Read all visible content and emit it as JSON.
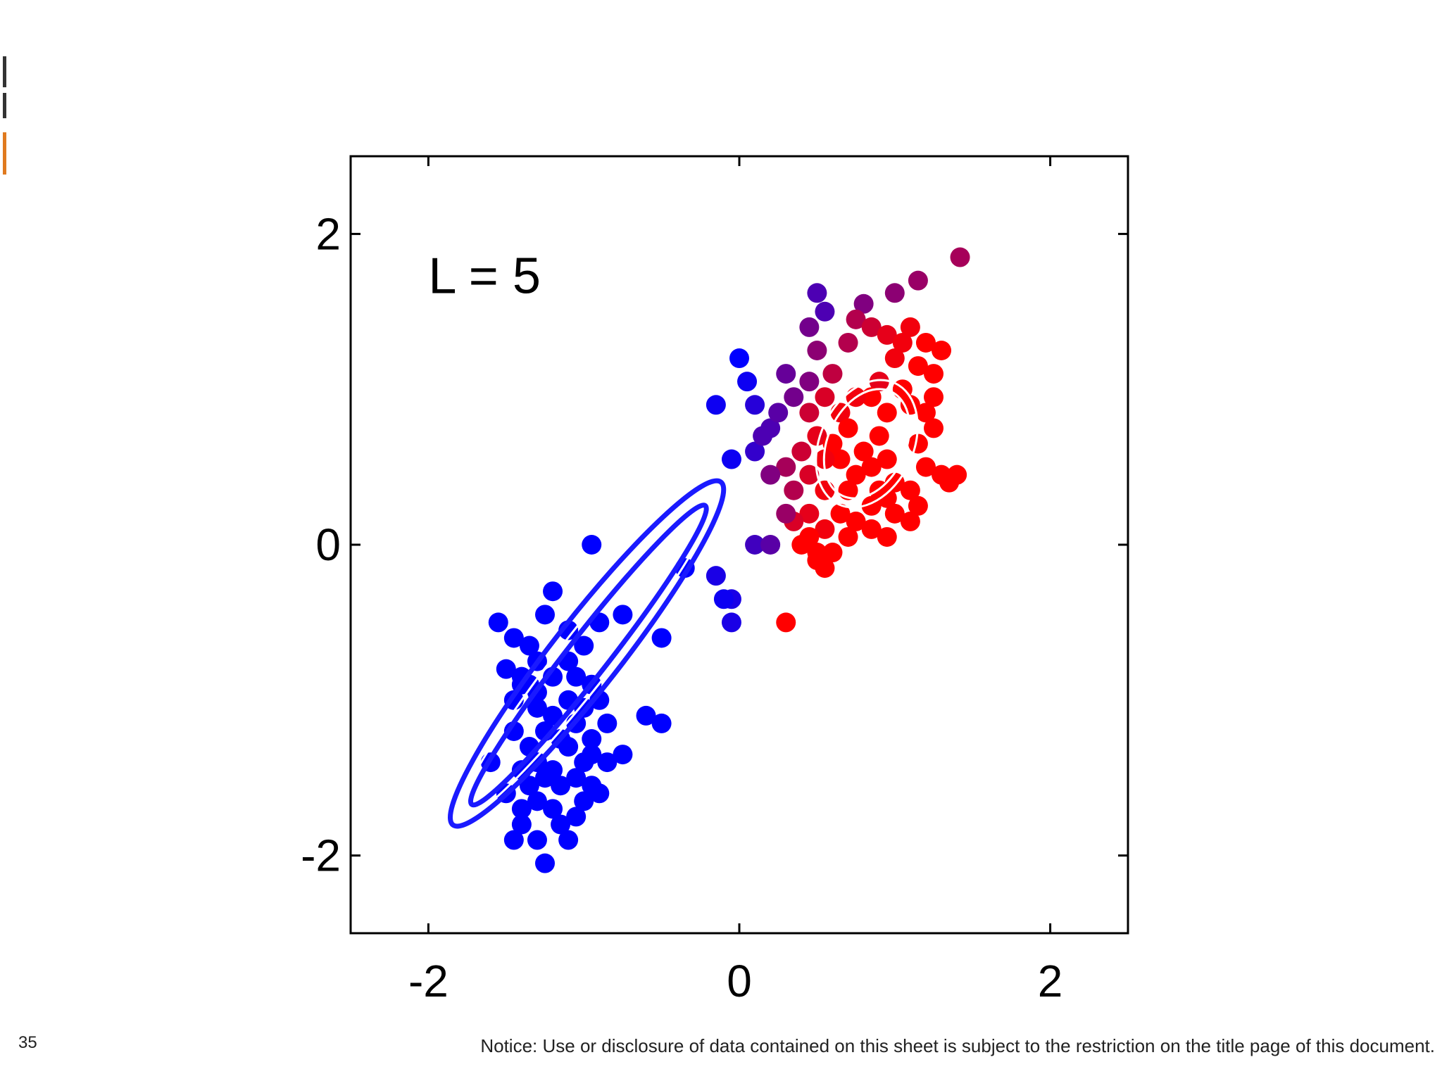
{
  "chart_data": {
    "type": "scatter",
    "title": "",
    "xlabel": "",
    "ylabel": "",
    "xlim": [
      -2.5,
      2.5
    ],
    "ylim": [
      -2.5,
      2.5
    ],
    "xticks": [
      -2,
      0,
      2
    ],
    "yticks": [
      -2,
      0,
      2
    ],
    "xtick_labels": [
      "-2",
      "0",
      "2"
    ],
    "ytick_labels": [
      "2",
      "0",
      "-2"
    ],
    "annotation": "L = 5",
    "grid": false,
    "legend": "none",
    "point_color_scale": [
      "#0000ff",
      "#ff0000"
    ],
    "points": [
      [
        -1.55,
        -0.5,
        0
      ],
      [
        -1.45,
        -0.6,
        0
      ],
      [
        -1.35,
        -0.65,
        0
      ],
      [
        -1.5,
        -0.8,
        0
      ],
      [
        -1.4,
        -0.85,
        0
      ],
      [
        -1.35,
        -0.9,
        0
      ],
      [
        -1.3,
        -0.95,
        0
      ],
      [
        -1.45,
        -1.0,
        0
      ],
      [
        -1.3,
        -1.05,
        0
      ],
      [
        -1.2,
        -1.1,
        0
      ],
      [
        -1.25,
        -1.2,
        0
      ],
      [
        -1.15,
        -1.25,
        0
      ],
      [
        -1.35,
        -1.3,
        0
      ],
      [
        -1.45,
        -1.2,
        0
      ],
      [
        -1.1,
        -1.3,
        0
      ],
      [
        -1.3,
        -1.4,
        0
      ],
      [
        -1.2,
        -1.45,
        0
      ],
      [
        -1.4,
        -1.45,
        0
      ],
      [
        -1.25,
        -1.5,
        0
      ],
      [
        -1.15,
        -1.55,
        0
      ],
      [
        -1.05,
        -1.5,
        0
      ],
      [
        -1.35,
        -1.55,
        0
      ],
      [
        -1.6,
        -1.4,
        0
      ],
      [
        -1.5,
        -1.6,
        0
      ],
      [
        -1.4,
        -1.7,
        0
      ],
      [
        -1.3,
        -1.65,
        0
      ],
      [
        -1.2,
        -1.7,
        0
      ],
      [
        -1.05,
        -1.75,
        0
      ],
      [
        -1.15,
        -1.8,
        0
      ],
      [
        -1.3,
        -1.9,
        0
      ],
      [
        -1.4,
        -1.8,
        0
      ],
      [
        -1.45,
        -1.9,
        0
      ],
      [
        -1.1,
        -1.9,
        0
      ],
      [
        -1.25,
        -2.05,
        0
      ],
      [
        -1.2,
        -0.3,
        0
      ],
      [
        -0.95,
        0.0,
        0
      ],
      [
        -1.25,
        -0.45,
        0
      ],
      [
        -1.1,
        -0.55,
        0
      ],
      [
        -1.0,
        -0.65,
        0
      ],
      [
        -0.9,
        -0.5,
        0
      ],
      [
        -0.75,
        -0.45,
        0
      ],
      [
        -0.5,
        -0.6,
        0
      ],
      [
        -0.35,
        -0.15,
        0
      ],
      [
        -1.1,
        -0.75,
        0
      ],
      [
        -1.05,
        -0.85,
        0
      ],
      [
        -0.95,
        -0.9,
        0
      ],
      [
        -0.9,
        -1.0,
        0
      ],
      [
        -1.0,
        -1.05,
        0
      ],
      [
        -0.85,
        -1.15,
        0
      ],
      [
        -0.95,
        -1.25,
        0
      ],
      [
        -1.05,
        -1.15,
        0
      ],
      [
        -0.85,
        -1.4,
        0
      ],
      [
        -0.75,
        -1.35,
        0
      ],
      [
        -0.6,
        -1.1,
        0
      ],
      [
        -0.5,
        -1.15,
        0
      ],
      [
        -0.95,
        -1.55,
        0
      ],
      [
        -0.9,
        -1.6,
        0
      ],
      [
        -1.0,
        -1.65,
        0
      ],
      [
        -1.0,
        -1.4,
        0
      ],
      [
        -0.95,
        -1.35,
        0
      ],
      [
        -1.3,
        -0.75,
        0
      ],
      [
        -1.4,
        -0.9,
        0
      ],
      [
        -1.2,
        -0.85,
        0
      ],
      [
        -1.1,
        -1.0,
        0
      ],
      [
        -0.15,
        -0.2,
        0.1
      ],
      [
        -0.05,
        -0.35,
        0.1
      ],
      [
        -0.05,
        -0.5,
        0.1
      ],
      [
        -0.1,
        -0.35,
        0.05
      ],
      [
        -0.05,
        0.55,
        0.05
      ],
      [
        -0.15,
        0.9,
        0.05
      ],
      [
        0.1,
        0.0,
        0.25
      ],
      [
        0.2,
        0.0,
        0.35
      ],
      [
        0.3,
        -0.5,
        1.0
      ],
      [
        0.05,
        1.05,
        0.05
      ],
      [
        0.0,
        1.2,
        0.0
      ],
      [
        0.1,
        0.9,
        0.15
      ],
      [
        0.2,
        0.75,
        0.3
      ],
      [
        0.1,
        0.6,
        0.2
      ],
      [
        0.25,
        0.85,
        0.35
      ],
      [
        0.35,
        0.95,
        0.45
      ],
      [
        0.45,
        1.05,
        0.5
      ],
      [
        0.3,
        1.1,
        0.4
      ],
      [
        0.5,
        1.25,
        0.55
      ],
      [
        0.45,
        1.4,
        0.45
      ],
      [
        0.55,
        1.5,
        0.3
      ],
      [
        0.5,
        1.62,
        0.3
      ],
      [
        0.8,
        1.55,
        0.5
      ],
      [
        1.0,
        1.62,
        0.55
      ],
      [
        1.15,
        1.7,
        0.6
      ],
      [
        1.42,
        1.85,
        0.65
      ],
      [
        0.7,
        1.3,
        0.7
      ],
      [
        0.75,
        1.45,
        0.7
      ],
      [
        0.85,
        1.4,
        0.8
      ],
      [
        0.6,
        1.1,
        0.75
      ],
      [
        0.95,
        1.35,
        0.9
      ],
      [
        1.1,
        1.4,
        0.95
      ],
      [
        1.05,
        1.3,
        0.95
      ],
      [
        1.2,
        1.3,
        1.0
      ],
      [
        1.3,
        1.25,
        1.0
      ],
      [
        1.15,
        1.15,
        1.0
      ],
      [
        1.25,
        1.1,
        1.0
      ],
      [
        1.0,
        1.2,
        0.95
      ],
      [
        0.9,
        1.05,
        0.9
      ],
      [
        1.1,
        0.9,
        1.0
      ],
      [
        1.2,
        0.85,
        1.0
      ],
      [
        1.25,
        0.75,
        1.0
      ],
      [
        1.15,
        0.65,
        1.0
      ],
      [
        1.2,
        0.5,
        1.0
      ],
      [
        1.3,
        0.45,
        1.0
      ],
      [
        1.35,
        0.4,
        1.0
      ],
      [
        1.1,
        0.35,
        1.0
      ],
      [
        1.15,
        0.25,
        1.0
      ],
      [
        1.0,
        0.4,
        1.0
      ],
      [
        0.95,
        0.3,
        1.0
      ],
      [
        1.0,
        0.2,
        1.0
      ],
      [
        0.85,
        0.25,
        1.0
      ],
      [
        0.75,
        0.15,
        1.0
      ],
      [
        0.65,
        0.2,
        1.0
      ],
      [
        0.55,
        0.35,
        0.95
      ],
      [
        0.45,
        0.45,
        0.85
      ],
      [
        0.35,
        0.35,
        0.7
      ],
      [
        0.3,
        0.5,
        0.65
      ],
      [
        0.4,
        0.6,
        0.8
      ],
      [
        0.5,
        0.7,
        0.9
      ],
      [
        0.45,
        0.85,
        0.8
      ],
      [
        0.55,
        0.95,
        0.85
      ],
      [
        0.65,
        0.85,
        0.95
      ],
      [
        0.6,
        0.65,
        1.0
      ],
      [
        0.7,
        0.75,
        1.0
      ],
      [
        0.8,
        0.6,
        1.0
      ],
      [
        0.9,
        0.7,
        1.0
      ],
      [
        0.85,
        0.5,
        1.0
      ],
      [
        0.75,
        0.45,
        1.0
      ],
      [
        0.95,
        0.55,
        1.0
      ],
      [
        0.65,
        0.55,
        1.0
      ],
      [
        0.55,
        0.55,
        0.95
      ],
      [
        0.45,
        0.2,
        0.9
      ],
      [
        0.35,
        0.15,
        0.85
      ],
      [
        0.55,
        0.1,
        0.95
      ],
      [
        0.85,
        0.1,
        1.0
      ],
      [
        0.95,
        0.05,
        1.0
      ],
      [
        1.1,
        0.15,
        1.0
      ],
      [
        0.4,
        0.0,
        1.0
      ],
      [
        0.5,
        -0.05,
        1.0
      ],
      [
        0.55,
        -0.15,
        1.0
      ],
      [
        0.5,
        -0.1,
        1.0
      ],
      [
        0.45,
        0.05,
        1.0
      ],
      [
        0.6,
        -0.05,
        1.0
      ],
      [
        0.7,
        0.05,
        1.0
      ],
      [
        1.4,
        0.45,
        1.0
      ],
      [
        1.25,
        0.95,
        1.0
      ],
      [
        0.3,
        0.2,
        0.6
      ],
      [
        0.2,
        0.45,
        0.5
      ],
      [
        0.15,
        0.7,
        0.3
      ],
      [
        0.85,
        0.95,
        1.0
      ],
      [
        0.95,
        0.85,
        1.0
      ],
      [
        0.75,
        0.95,
        0.95
      ],
      [
        1.05,
        1.0,
        1.0
      ],
      [
        0.9,
        0.35,
        1.0
      ],
      [
        0.7,
        0.35,
        1.0
      ]
    ],
    "ellipses": [
      {
        "cx": -0.98,
        "cy": -0.7,
        "a": 1.4,
        "b": 0.22,
        "angle_deg": 52,
        "color": "#1a1aff",
        "stroke": 7
      },
      {
        "cx": -0.98,
        "cy": -0.72,
        "a": 1.32,
        "b": 0.17,
        "angle_deg": 52,
        "color": "#ffffff",
        "stroke": 3
      },
      {
        "cx": -0.97,
        "cy": -0.71,
        "a": 1.22,
        "b": 0.13,
        "angle_deg": 52,
        "color": "#1a1aff",
        "stroke": 7
      },
      {
        "cx": 0.82,
        "cy": 0.65,
        "a": 0.43,
        "b": 0.3,
        "angle_deg": 65,
        "color": "#ffffff",
        "stroke": 3
      },
      {
        "cx": 0.82,
        "cy": 0.65,
        "a": 0.37,
        "b": 0.25,
        "angle_deg": 65,
        "color": "#ffffff",
        "stroke": 3
      }
    ]
  },
  "footer": {
    "page_number": "35",
    "notice": "Notice: Use or disclosure of data contained on this sheet is subject to the restriction on the title page of this document."
  }
}
